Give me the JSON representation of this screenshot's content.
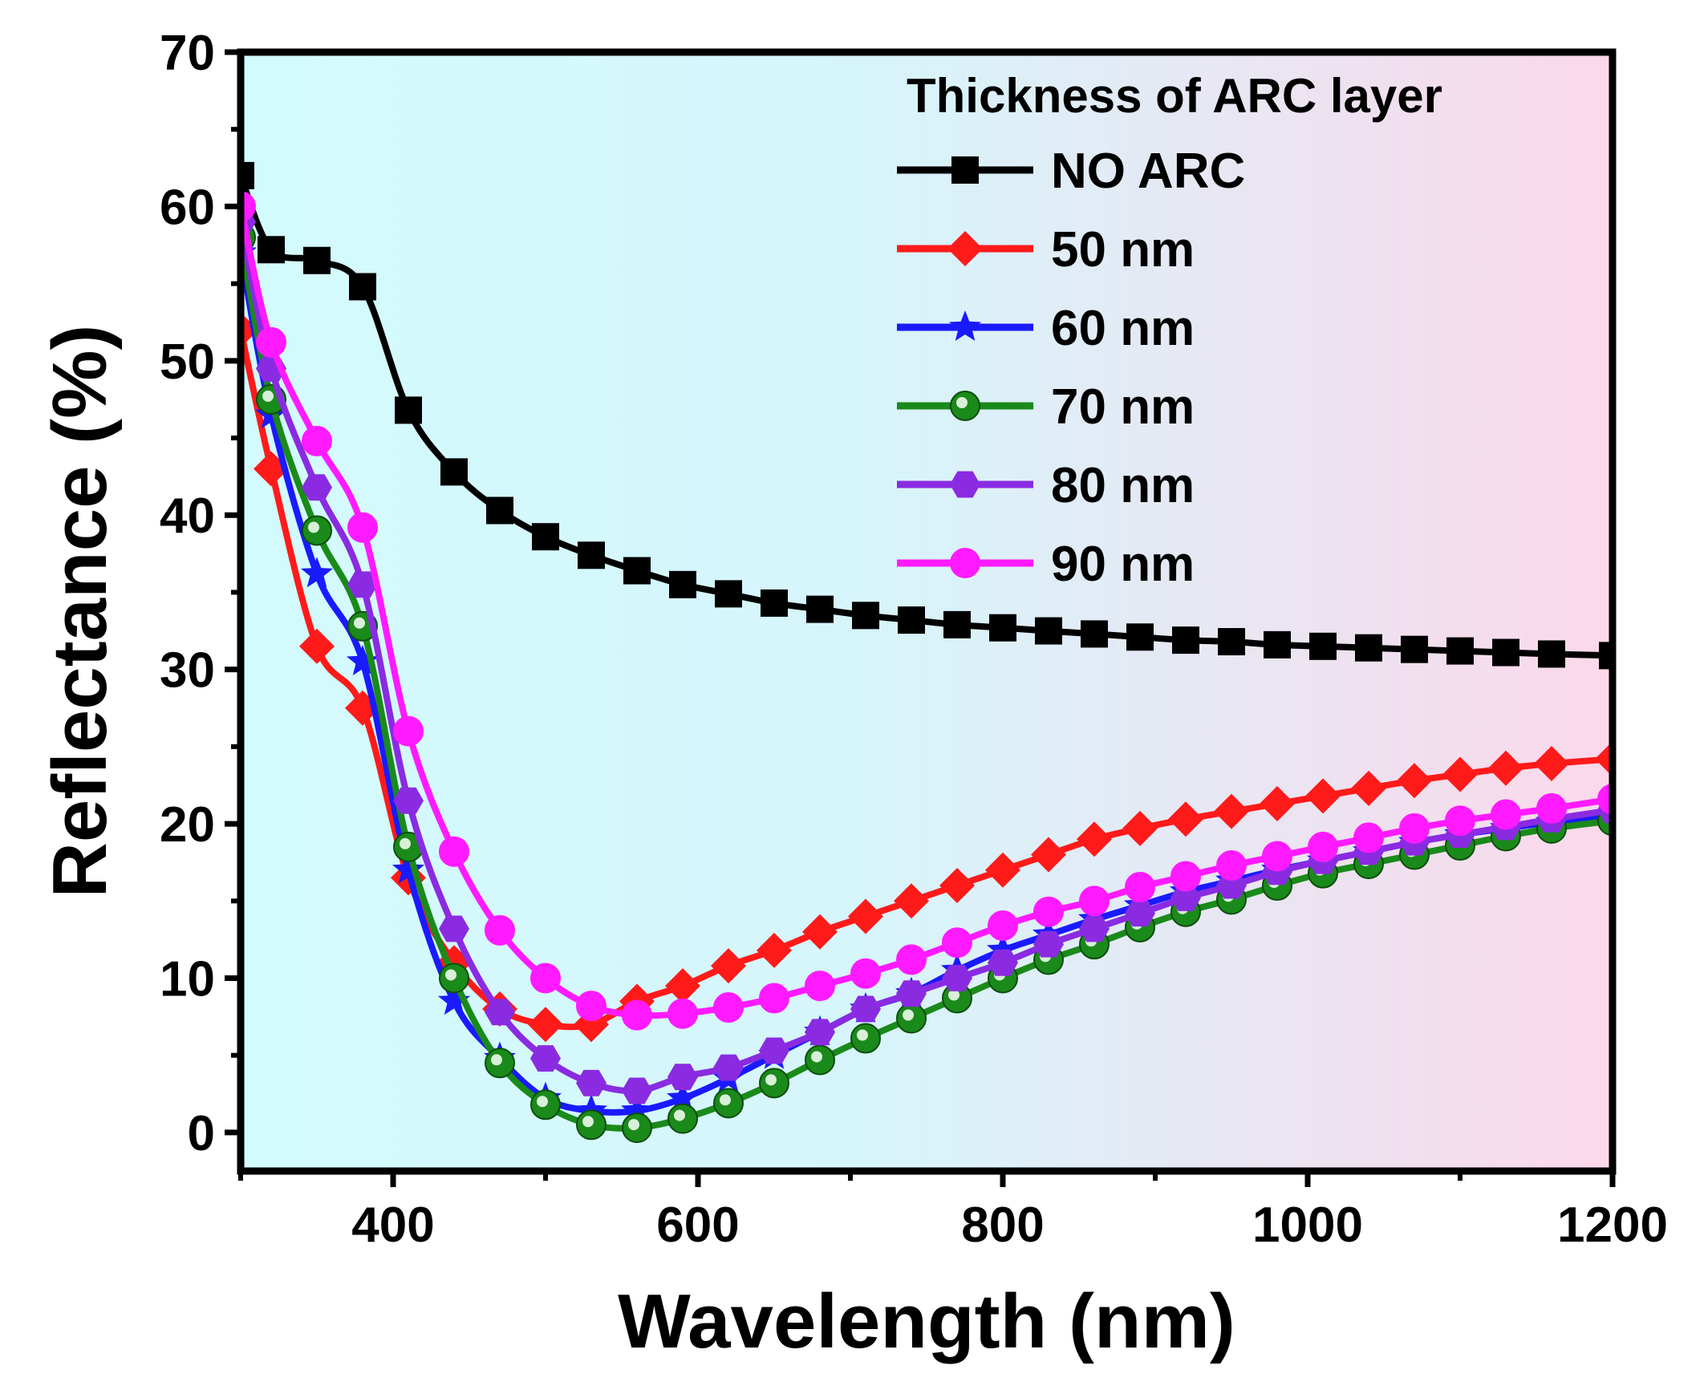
{
  "chart_data": {
    "type": "line",
    "xlabel": "Wavelength (nm)",
    "ylabel": "Reflectance (%)",
    "xlim": [
      300,
      1200
    ],
    "ylim": [
      -2.5,
      70
    ],
    "x_ticks": [
      400,
      600,
      800,
      1000,
      1200
    ],
    "y_ticks": [
      0,
      10,
      20,
      30,
      40,
      50,
      60,
      70
    ],
    "background": {
      "left": "#d3fbfd",
      "right": "#fbd8ea"
    },
    "legend": {
      "title": "Thickness of ARC layer",
      "position": "top-right"
    },
    "x": [
      300,
      320,
      350,
      380,
      410,
      440,
      470,
      500,
      530,
      560,
      590,
      620,
      650,
      680,
      710,
      740,
      770,
      800,
      830,
      860,
      890,
      920,
      950,
      980,
      1010,
      1040,
      1070,
      1100,
      1130,
      1160,
      1200
    ],
    "series": [
      {
        "name": "NO ARC",
        "color": "#000000",
        "marker": "square",
        "values": [
          62,
          57.2,
          56.5,
          54.8,
          46.8,
          42.8,
          40.3,
          38.6,
          37.4,
          36.4,
          35.5,
          34.9,
          34.3,
          33.9,
          33.5,
          33.2,
          32.9,
          32.7,
          32.5,
          32.3,
          32.1,
          31.9,
          31.8,
          31.6,
          31.5,
          31.4,
          31.3,
          31.2,
          31.1,
          31.0,
          30.9
        ]
      },
      {
        "name": "50 nm",
        "color": "#ff1a1a",
        "marker": "diamond",
        "values": [
          52,
          43,
          31.5,
          27.5,
          16.5,
          11,
          8,
          7,
          7,
          8.5,
          9.5,
          10.8,
          11.8,
          13,
          14,
          15,
          16,
          17,
          18,
          19,
          19.7,
          20.3,
          20.8,
          21.3,
          21.8,
          22.3,
          22.8,
          23.2,
          23.6,
          23.9,
          24.2
        ]
      },
      {
        "name": "60 nm",
        "color": "#1a1aff",
        "marker": "star",
        "values": [
          57,
          46.5,
          36.2,
          30.5,
          17,
          8.5,
          4.8,
          2.2,
          1.4,
          1.4,
          2.2,
          3.5,
          5,
          6.5,
          8,
          9,
          10.5,
          11.8,
          12.8,
          13.8,
          14.7,
          15.6,
          16.3,
          17,
          17.6,
          18.2,
          18.8,
          19.3,
          19.7,
          20.1,
          20.5
        ]
      },
      {
        "name": "70 nm",
        "color": "#1a8a1a",
        "marker": "circle",
        "values": [
          58,
          47.5,
          39,
          32.8,
          18.5,
          10,
          4.5,
          1.8,
          0.5,
          0.3,
          0.9,
          1.9,
          3.2,
          4.7,
          6.1,
          7.4,
          8.7,
          10,
          11.2,
          12.2,
          13.3,
          14.3,
          15.1,
          16,
          16.8,
          17.4,
          18,
          18.6,
          19.2,
          19.7,
          20.2
        ]
      },
      {
        "name": "80 nm",
        "color": "#8a2be2",
        "marker": "hexagon",
        "values": [
          59,
          49.5,
          41.8,
          35.5,
          21.5,
          13.2,
          7.8,
          4.8,
          3.2,
          2.7,
          3.6,
          4.2,
          5.3,
          6.5,
          8,
          9,
          10,
          11,
          12.2,
          13.2,
          14.2,
          15.2,
          16,
          16.9,
          17.6,
          18.2,
          18.8,
          19.3,
          19.8,
          20.3,
          20.9
        ]
      },
      {
        "name": "90 nm",
        "color": "#ff1aff",
        "marker": "circle",
        "values": [
          60,
          51.2,
          44.8,
          39.2,
          26,
          18.2,
          13.1,
          10,
          8.2,
          7.6,
          7.7,
          8.1,
          8.7,
          9.5,
          10.3,
          11.2,
          12.3,
          13.4,
          14.3,
          15,
          15.9,
          16.6,
          17.3,
          17.9,
          18.5,
          19.1,
          19.7,
          20.2,
          20.6,
          21,
          21.6
        ]
      }
    ]
  }
}
